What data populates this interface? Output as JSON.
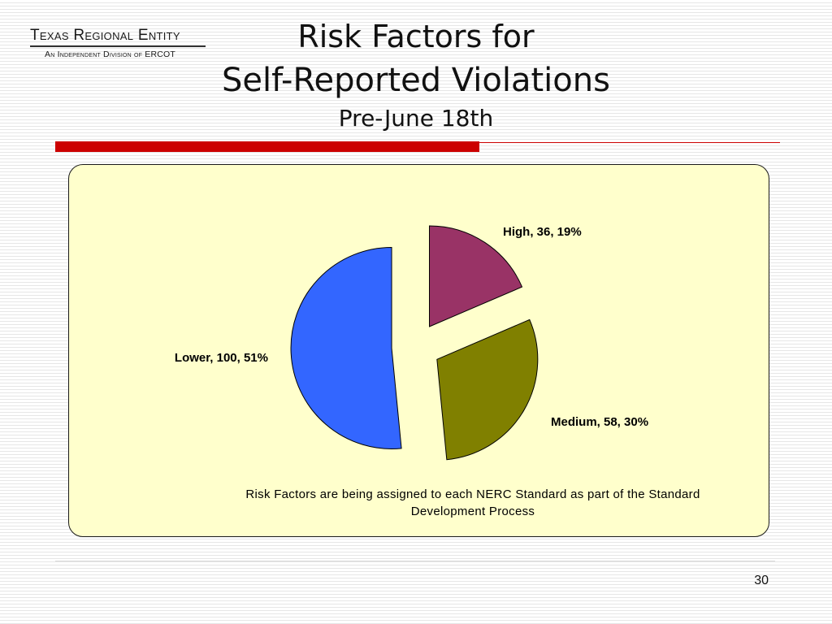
{
  "logo": {
    "name": "Texas Regional Entity",
    "subtitle": "An Independent Division of ERCOT"
  },
  "slide": {
    "title_line1": "Risk Factors for",
    "title_line2": "Self-Reported Violations",
    "subtitle": "Pre-June 18th",
    "note": "Risk Factors are being assigned to each NERC Standard as part of the Standard Development Process",
    "page_number": "30"
  },
  "colors": {
    "accent_red": "#cc0000",
    "panel_background": "#ffffcc"
  },
  "chart_data": {
    "type": "pie",
    "title": "",
    "slices": [
      {
        "label": "High",
        "value": 36,
        "percent": 19,
        "display": "High, 36, 19%",
        "color": "#993366"
      },
      {
        "label": "Medium",
        "value": 58,
        "percent": 30,
        "display": "Medium, 58, 30%",
        "color": "#808000"
      },
      {
        "label": "Lower",
        "value": 100,
        "percent": 51,
        "display": "Lower, 100, 51%",
        "color": "#3366ff"
      }
    ],
    "exploded": true,
    "legend": "none"
  }
}
